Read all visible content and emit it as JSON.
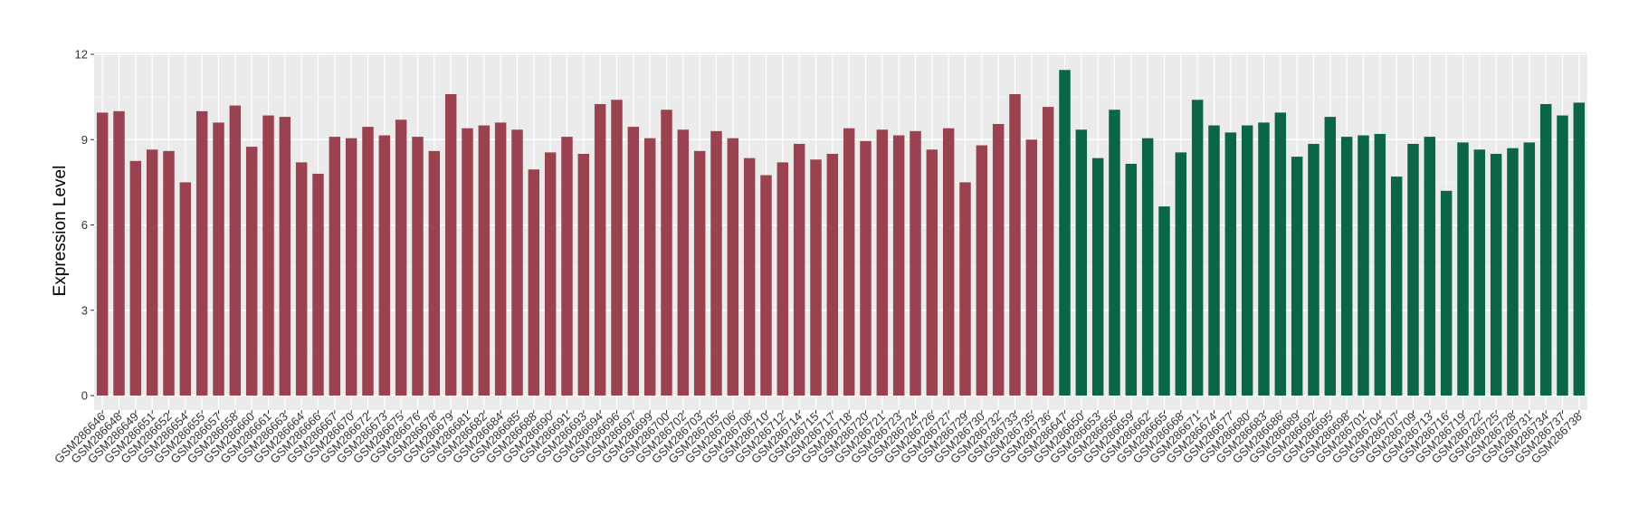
{
  "chart_data": {
    "type": "bar",
    "title": "",
    "xlabel": "",
    "ylabel": "Expression Level",
    "ylim": [
      0,
      12
    ],
    "yticks": [
      0,
      3,
      6,
      9,
      12
    ],
    "grid": true,
    "legend": "none",
    "colors": {
      "group1": "#9b4250",
      "group2": "#0a6645",
      "panel": "#ebebeb",
      "grid": "#ffffff"
    },
    "categories": [
      "GSM286646",
      "GSM286648",
      "GSM286649",
      "GSM286651",
      "GSM286652",
      "GSM286654",
      "GSM286655",
      "GSM286657",
      "GSM286658",
      "GSM286660",
      "GSM286661",
      "GSM286663",
      "GSM286664",
      "GSM286666",
      "GSM286667",
      "GSM286670",
      "GSM286672",
      "GSM286673",
      "GSM286675",
      "GSM286676",
      "GSM286678",
      "GSM286679",
      "GSM286681",
      "GSM286682",
      "GSM286684",
      "GSM286685",
      "GSM286688",
      "GSM286690",
      "GSM286691",
      "GSM286693",
      "GSM286694",
      "GSM286696",
      "GSM286697",
      "GSM286699",
      "GSM286700",
      "GSM286702",
      "GSM286703",
      "GSM286705",
      "GSM286706",
      "GSM286708",
      "GSM286710",
      "GSM286712",
      "GSM286714",
      "GSM286715",
      "GSM286717",
      "GSM286718",
      "GSM286720",
      "GSM286721",
      "GSM286723",
      "GSM286724",
      "GSM286726",
      "GSM286727",
      "GSM286729",
      "GSM286730",
      "GSM286732",
      "GSM286733",
      "GSM286735",
      "GSM286736",
      "GSM286647",
      "GSM286650",
      "GSM286653",
      "GSM286656",
      "GSM286659",
      "GSM286662",
      "GSM286665",
      "GSM286668",
      "GSM286671",
      "GSM286674",
      "GSM286677",
      "GSM286680",
      "GSM286683",
      "GSM286686",
      "GSM286689",
      "GSM286692",
      "GSM286695",
      "GSM286698",
      "GSM286701",
      "GSM286704",
      "GSM286707",
      "GSM286709",
      "GSM286713",
      "GSM286716",
      "GSM286719",
      "GSM286722",
      "GSM286725",
      "GSM286728",
      "GSM286731",
      "GSM286734",
      "GSM286737",
      "GSM286738"
    ],
    "values": [
      9.95,
      10.0,
      8.25,
      8.65,
      8.6,
      7.5,
      10.0,
      9.6,
      10.2,
      8.75,
      9.85,
      9.8,
      8.2,
      7.8,
      9.1,
      9.05,
      9.45,
      9.15,
      9.7,
      9.1,
      8.6,
      10.6,
      9.4,
      9.5,
      9.6,
      9.35,
      7.95,
      8.55,
      9.1,
      8.5,
      10.25,
      10.4,
      9.45,
      9.05,
      10.05,
      9.35,
      8.6,
      9.3,
      9.05,
      8.35,
      7.75,
      8.2,
      8.85,
      8.3,
      8.5,
      9.4,
      8.95,
      9.35,
      9.15,
      9.3,
      8.65,
      9.4,
      7.5,
      8.8,
      9.55,
      10.6,
      9.0,
      10.15,
      11.45,
      9.35,
      8.35,
      10.05,
      8.15,
      9.05,
      6.65,
      8.55,
      10.4,
      9.5,
      9.25,
      9.5,
      9.6,
      9.95,
      8.4,
      8.85,
      9.8,
      9.1,
      9.15,
      9.2,
      7.7,
      8.85,
      9.1,
      7.2,
      8.9,
      8.65,
      8.5,
      8.7,
      8.9,
      10.25,
      9.85,
      10.3
    ],
    "group": [
      1,
      1,
      1,
      1,
      1,
      1,
      1,
      1,
      1,
      1,
      1,
      1,
      1,
      1,
      1,
      1,
      1,
      1,
      1,
      1,
      1,
      1,
      1,
      1,
      1,
      1,
      1,
      1,
      1,
      1,
      1,
      1,
      1,
      1,
      1,
      1,
      1,
      1,
      1,
      1,
      1,
      1,
      1,
      1,
      1,
      1,
      1,
      1,
      1,
      1,
      1,
      1,
      1,
      1,
      1,
      1,
      1,
      1,
      2,
      2,
      2,
      2,
      2,
      2,
      2,
      2,
      2,
      2,
      2,
      2,
      2,
      2,
      2,
      2,
      2,
      2,
      2,
      2,
      2,
      2,
      2,
      2,
      2,
      2,
      2,
      2,
      2,
      2,
      2,
      2
    ]
  }
}
